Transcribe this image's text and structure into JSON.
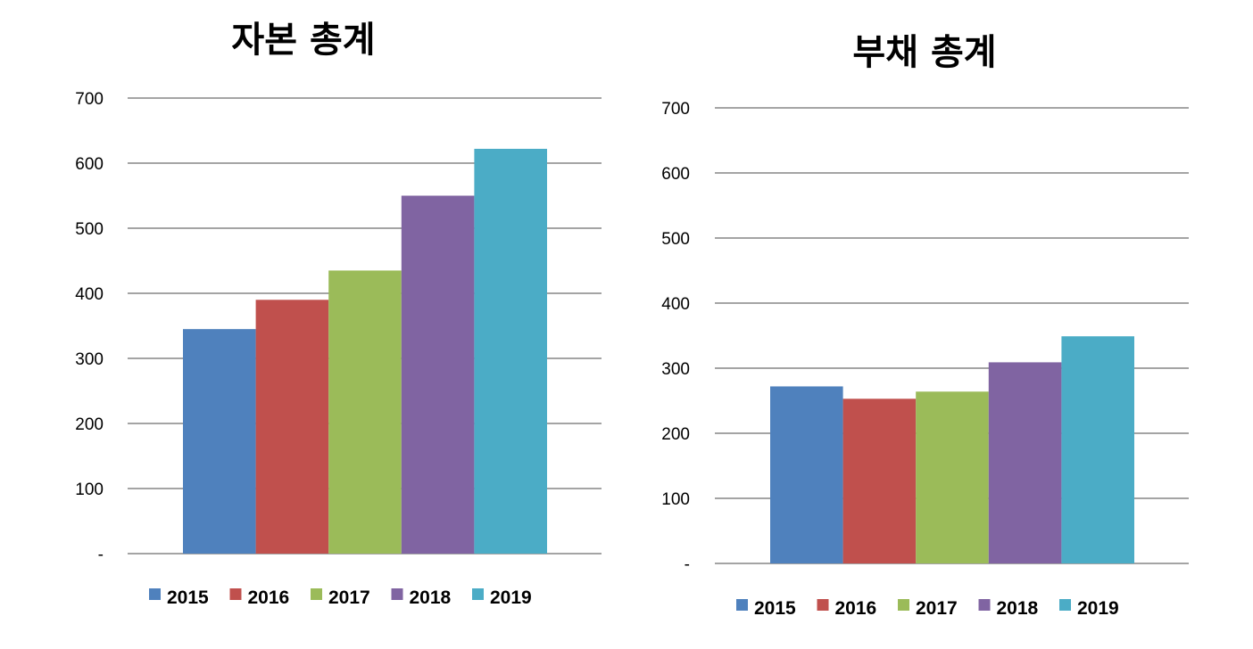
{
  "colors": [
    "#4f81bd",
    "#c0504d",
    "#9bbb59",
    "#8064a2",
    "#4bacc6"
  ],
  "chart_data": [
    {
      "type": "bar",
      "title": "자본 총계",
      "categories": [
        "2015",
        "2016",
        "2017",
        "2018",
        "2019"
      ],
      "values": [
        345,
        390,
        435,
        550,
        622
      ],
      "ylim": [
        0,
        700
      ],
      "yticks": [
        0,
        100,
        200,
        300,
        400,
        500,
        600,
        700
      ],
      "ytick_labels": [
        "-",
        "100",
        "200",
        "300",
        "400",
        "500",
        "600",
        "700"
      ],
      "xlabel": "",
      "ylabel": "",
      "grid": true,
      "legend": "bottom"
    },
    {
      "type": "bar",
      "title": "부채 총계",
      "categories": [
        "2015",
        "2016",
        "2017",
        "2018",
        "2019"
      ],
      "values": [
        272,
        253,
        264,
        309,
        349
      ],
      "ylim": [
        0,
        700
      ],
      "yticks": [
        0,
        100,
        200,
        300,
        400,
        500,
        600,
        700
      ],
      "ytick_labels": [
        "-",
        "100",
        "200",
        "300",
        "400",
        "500",
        "600",
        "700"
      ],
      "xlabel": "",
      "ylabel": "",
      "grid": true,
      "legend": "bottom"
    }
  ]
}
